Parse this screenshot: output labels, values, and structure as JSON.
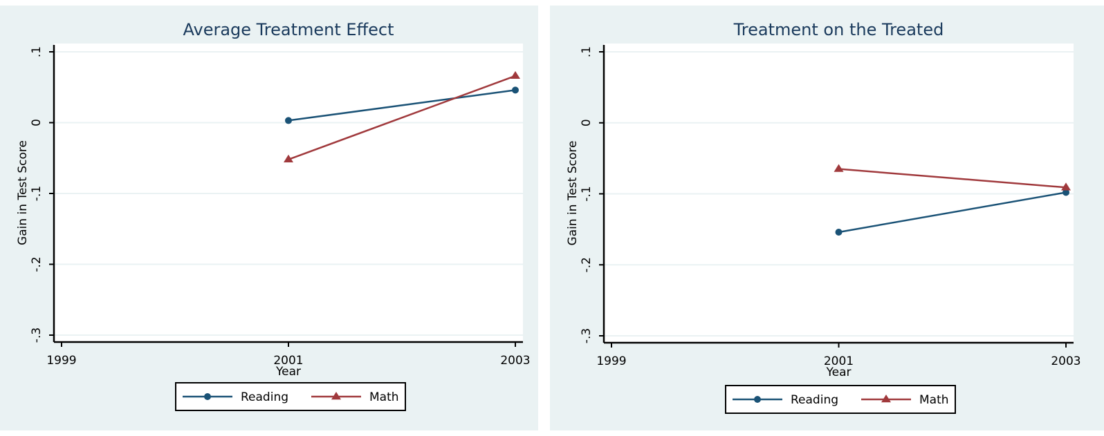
{
  "colors": {
    "panel_background": "#eaf2f3",
    "plot_background": "#ffffff",
    "grid": "#eaf2f3",
    "reading": "#1a5276",
    "math": "#a0393c",
    "title": "#1a3a5c"
  },
  "chart_data": [
    {
      "type": "line",
      "title": "Average Treatment Effect",
      "xlabel": "Year",
      "ylabel": "Gain in Test Score",
      "x": [
        2001,
        2003
      ],
      "xticks": [
        "1999",
        "2001",
        "2003"
      ],
      "xtick_values": [
        1999,
        2001,
        2003
      ],
      "yticks": [
        "-.3",
        "-.2",
        "-.1",
        "0",
        ".1"
      ],
      "ytick_values": [
        -0.3,
        -0.2,
        -0.1,
        0,
        0.1
      ],
      "xlim": [
        1999,
        2003
      ],
      "ylim": [
        -0.3,
        0.1
      ],
      "grid": true,
      "legend_position": "bottom",
      "series": [
        {
          "name": "Reading",
          "marker": "circle",
          "values": [
            0.003,
            0.046
          ]
        },
        {
          "name": "Math",
          "marker": "triangle",
          "values": [
            -0.052,
            0.066
          ]
        }
      ]
    },
    {
      "type": "line",
      "title": "Treatment on the Treated",
      "xlabel": "Year",
      "ylabel": "Gain in Test Score",
      "x": [
        2001,
        2003
      ],
      "xticks": [
        "1999",
        "2001",
        "2003"
      ],
      "xtick_values": [
        1999,
        2001,
        2003
      ],
      "yticks": [
        "-.3",
        "-.2",
        "-.1",
        "0",
        ".1"
      ],
      "ytick_values": [
        -0.3,
        -0.2,
        -0.1,
        0,
        0.1
      ],
      "xlim": [
        1999,
        2003
      ],
      "ylim": [
        -0.3,
        0.1
      ],
      "grid": true,
      "legend_position": "bottom",
      "series": [
        {
          "name": "Reading",
          "marker": "circle",
          "values": [
            -0.154,
            -0.098
          ]
        },
        {
          "name": "Math",
          "marker": "triangle",
          "values": [
            -0.065,
            -0.091
          ]
        }
      ]
    }
  ]
}
